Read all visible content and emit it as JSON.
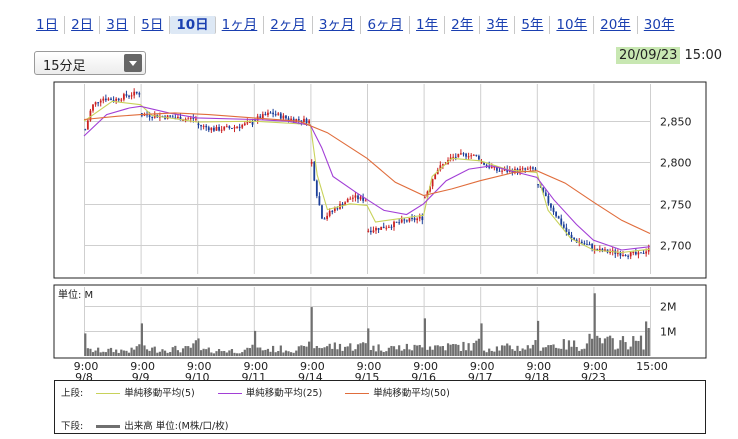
{
  "tabs": [
    "1日",
    "2日",
    "3日",
    "5日",
    "10日",
    "1ヶ月",
    "2ヶ月",
    "3ヶ月",
    "6ヶ月",
    "1年",
    "2年",
    "3年",
    "5年",
    "10年",
    "20年",
    "30年"
  ],
  "active_tab": "10日",
  "interval_select": "15分足",
  "timestamp": {
    "date": "20/09/23",
    "time": "15:00"
  },
  "legend": {
    "upper_label": "上段:",
    "lower_label": "下段:",
    "sma5": "単純移動平均(5)",
    "sma25": "単純移動平均(25)",
    "sma50": "単純移動平均(50)",
    "volume": "出来高 単位:(M株/口/枚)"
  },
  "colors": {
    "up": "#cc2222",
    "down": "#1c3f99",
    "sma5": "#c8d25a",
    "sma25": "#a23fd6",
    "sma50": "#e06d3c",
    "volume": "#6f6f6f",
    "active_tab_bg": "#dde8f5",
    "date_highlight": "#c8e7b2"
  },
  "chart_data": [
    {
      "type": "candlestick",
      "title": "",
      "x_tick_labels": [
        [
          "9:00",
          "9/8"
        ],
        [
          "9:00",
          "9/9"
        ],
        [
          "9:00",
          "9/10"
        ],
        [
          "9:00",
          "9/11"
        ],
        [
          "9:00",
          "9/14"
        ],
        [
          "9:00",
          "9/15"
        ],
        [
          "9:00",
          "9/16"
        ],
        [
          "9:00",
          "9/17"
        ],
        [
          "9:00",
          "9/18"
        ],
        [
          "9:00",
          "9/23"
        ],
        [
          "15:00",
          ""
        ]
      ],
      "y_ticks": [
        2700,
        2750,
        2800,
        2850
      ],
      "ylim": [
        2665,
        2895
      ],
      "grid": true,
      "price_path": [
        {
          "day": 0,
          "f": 0.0,
          "p": 2840
        },
        {
          "day": 0,
          "f": 0.12,
          "p": 2868
        },
        {
          "day": 0,
          "f": 0.3,
          "p": 2878
        },
        {
          "day": 0,
          "f": 0.55,
          "p": 2876
        },
        {
          "day": 0,
          "f": 0.8,
          "p": 2882
        },
        {
          "day": 0,
          "f": 1.0,
          "p": 2884
        },
        {
          "day": 1,
          "f": 0.0,
          "p": 2858
        },
        {
          "day": 1,
          "f": 0.2,
          "p": 2857
        },
        {
          "day": 1,
          "f": 0.5,
          "p": 2855
        },
        {
          "day": 1,
          "f": 0.8,
          "p": 2853
        },
        {
          "day": 1,
          "f": 1.0,
          "p": 2853
        },
        {
          "day": 2,
          "f": 0.0,
          "p": 2845
        },
        {
          "day": 2,
          "f": 0.3,
          "p": 2840
        },
        {
          "day": 2,
          "f": 0.6,
          "p": 2842
        },
        {
          "day": 2,
          "f": 1.0,
          "p": 2848
        },
        {
          "day": 3,
          "f": 0.0,
          "p": 2852
        },
        {
          "day": 3,
          "f": 0.3,
          "p": 2860
        },
        {
          "day": 3,
          "f": 0.6,
          "p": 2853
        },
        {
          "day": 3,
          "f": 1.0,
          "p": 2850
        },
        {
          "day": 4,
          "f": 0.0,
          "p": 2800
        },
        {
          "day": 4,
          "f": 0.1,
          "p": 2760
        },
        {
          "day": 4,
          "f": 0.2,
          "p": 2732
        },
        {
          "day": 4,
          "f": 0.45,
          "p": 2745
        },
        {
          "day": 4,
          "f": 0.75,
          "p": 2758
        },
        {
          "day": 4,
          "f": 1.0,
          "p": 2755
        },
        {
          "day": 5,
          "f": 0.0,
          "p": 2718
        },
        {
          "day": 5,
          "f": 0.3,
          "p": 2722
        },
        {
          "day": 5,
          "f": 0.6,
          "p": 2728
        },
        {
          "day": 5,
          "f": 1.0,
          "p": 2733
        },
        {
          "day": 6,
          "f": 0.0,
          "p": 2758
        },
        {
          "day": 6,
          "f": 0.2,
          "p": 2790
        },
        {
          "day": 6,
          "f": 0.5,
          "p": 2806
        },
        {
          "day": 6,
          "f": 0.8,
          "p": 2810
        },
        {
          "day": 6,
          "f": 1.0,
          "p": 2806
        },
        {
          "day": 7,
          "f": 0.0,
          "p": 2800
        },
        {
          "day": 7,
          "f": 0.3,
          "p": 2790
        },
        {
          "day": 7,
          "f": 0.6,
          "p": 2790
        },
        {
          "day": 7,
          "f": 1.0,
          "p": 2792
        },
        {
          "day": 8,
          "f": 0.0,
          "p": 2772
        },
        {
          "day": 8,
          "f": 0.3,
          "p": 2740
        },
        {
          "day": 8,
          "f": 0.6,
          "p": 2708
        },
        {
          "day": 8,
          "f": 1.0,
          "p": 2698
        },
        {
          "day": 9,
          "f": 0.0,
          "p": 2694
        },
        {
          "day": 9,
          "f": 0.5,
          "p": 2690
        },
        {
          "day": 9,
          "f": 0.85,
          "p": 2688
        },
        {
          "day": 9,
          "f": 1.0,
          "p": 2697
        }
      ],
      "volume_path": [
        {
          "day": 0,
          "open": 0.9,
          "base": 0.2,
          "close": 0.4
        },
        {
          "day": 1,
          "open": 1.3,
          "base": 0.25,
          "close": 0.5
        },
        {
          "day": 2,
          "open": 0.7,
          "base": 0.2,
          "close": 0.35
        },
        {
          "day": 3,
          "open": 1.0,
          "base": 0.25,
          "close": 0.45
        },
        {
          "day": 4,
          "open": 1.95,
          "base": 0.35,
          "close": 0.5
        },
        {
          "day": 5,
          "open": 1.1,
          "base": 0.3,
          "close": 0.4
        },
        {
          "day": 6,
          "open": 1.5,
          "base": 0.35,
          "close": 0.55
        },
        {
          "day": 7,
          "open": 1.3,
          "base": 0.3,
          "close": 0.5
        },
        {
          "day": 8,
          "open": 1.4,
          "base": 0.4,
          "close": 0.8
        },
        {
          "day": 9,
          "open": 2.5,
          "base": 0.5,
          "close": 1.2
        }
      ],
      "series": [
        {
          "name": "単純移動平均(5)",
          "points": [
            [
              0.0,
              2850
            ],
            [
              0.5,
              2874
            ],
            [
              1.0,
              2870
            ],
            [
              1.2,
              2857
            ],
            [
              2.0,
              2849
            ],
            [
              3.0,
              2850
            ],
            [
              4.0,
              2846
            ],
            [
              4.12,
              2785
            ],
            [
              4.3,
              2743
            ],
            [
              4.7,
              2750
            ],
            [
              5.0,
              2748
            ],
            [
              5.15,
              2728
            ],
            [
              6.0,
              2736
            ],
            [
              6.15,
              2783
            ],
            [
              6.5,
              2805
            ],
            [
              7.0,
              2802
            ],
            [
              7.5,
              2791
            ],
            [
              8.0,
              2788
            ],
            [
              8.2,
              2742
            ],
            [
              8.6,
              2708
            ],
            [
              9.0,
              2694
            ],
            [
              9.5,
              2691
            ],
            [
              10.0,
              2695
            ]
          ]
        },
        {
          "name": "単純移動平均(25)",
          "points": [
            [
              0.0,
              2832
            ],
            [
              0.4,
              2858
            ],
            [
              0.8,
              2866
            ],
            [
              1.0,
              2868
            ],
            [
              1.5,
              2860
            ],
            [
              2.0,
              2854
            ],
            [
              3.0,
              2852
            ],
            [
              3.6,
              2850
            ],
            [
              4.0,
              2845
            ],
            [
              4.2,
              2818
            ],
            [
              4.4,
              2783
            ],
            [
              4.8,
              2764
            ],
            [
              5.3,
              2742
            ],
            [
              5.7,
              2737
            ],
            [
              6.0,
              2750
            ],
            [
              6.4,
              2778
            ],
            [
              6.8,
              2792
            ],
            [
              7.2,
              2796
            ],
            [
              7.6,
              2789
            ],
            [
              8.0,
              2782
            ],
            [
              8.3,
              2755
            ],
            [
              8.7,
              2725
            ],
            [
              9.0,
              2706
            ],
            [
              9.5,
              2694
            ],
            [
              10.0,
              2698
            ]
          ]
        },
        {
          "name": "単純移動平均(50)",
          "points": [
            [
              0.0,
              2852
            ],
            [
              0.6,
              2856
            ],
            [
              1.0,
              2858
            ],
            [
              1.6,
              2860
            ],
            [
              2.2,
              2858
            ],
            [
              3.0,
              2854
            ],
            [
              3.8,
              2850
            ],
            [
              4.3,
              2836
            ],
            [
              5.0,
              2805
            ],
            [
              5.5,
              2776
            ],
            [
              6.0,
              2760
            ],
            [
              6.5,
              2768
            ],
            [
              7.0,
              2778
            ],
            [
              7.6,
              2788
            ],
            [
              8.0,
              2790
            ],
            [
              8.5,
              2775
            ],
            [
              9.0,
              2752
            ],
            [
              9.5,
              2730
            ],
            [
              10.0,
              2714
            ]
          ]
        }
      ]
    },
    {
      "type": "bar",
      "title": "",
      "ylabel": "単位: M",
      "y_ticks": [
        {
          "value": 1,
          "label": "1M"
        },
        {
          "value": 2,
          "label": "2M"
        }
      ],
      "ylim": [
        0,
        2.75
      ],
      "grid": true
    }
  ]
}
